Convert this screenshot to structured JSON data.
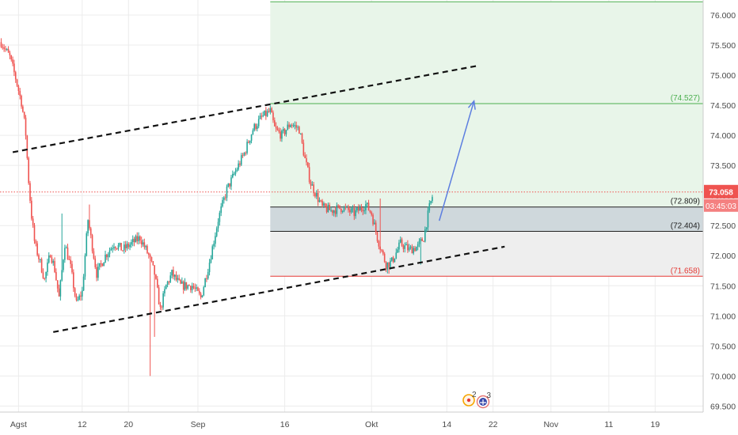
{
  "chart_data": {
    "type": "candlestick",
    "title": "",
    "y_ticks": [
      "76.000",
      "75.500",
      "75.000",
      "74.500",
      "74.000",
      "73.500",
      "73.000",
      "72.500",
      "72.000",
      "71.500",
      "71.000",
      "70.500",
      "70.000",
      "69.500"
    ],
    "y_range": [
      69.4,
      76.25
    ],
    "x_ticks": [
      {
        "label": "Agst",
        "day": 0
      },
      {
        "label": "12",
        "day": 11
      },
      {
        "label": "20",
        "day": 19
      },
      {
        "label": "Sep",
        "day": 31
      },
      {
        "label": "16",
        "day": 46
      },
      {
        "label": "Okt",
        "day": 61
      },
      {
        "label": "14",
        "day": 74
      },
      {
        "label": "22",
        "day": 82
      },
      {
        "label": "Nov",
        "day": 92
      },
      {
        "label": "11",
        "day": 102
      },
      {
        "label": "19",
        "day": 110
      }
    ],
    "x_range": [
      -3.2,
      118.3
    ],
    "last_price": {
      "label": "73.058",
      "value": 73.058,
      "countdown": "03:45:03"
    },
    "levels": [
      {
        "label": "(74.527)",
        "value": 74.527,
        "color": "#4caf50"
      },
      {
        "label": "(72.809)",
        "value": 72.809,
        "color": "#222222"
      },
      {
        "label": "(72.404)",
        "value": 72.404,
        "color": "#222222"
      },
      {
        "label": "(71.658)",
        "value": 71.658,
        "color": "#e53935"
      }
    ],
    "top_level": {
      "value": 76.22,
      "color": "#4caf50"
    },
    "zones": [
      {
        "name": "target-zone",
        "from_day": 43.5,
        "to_day": 118.3,
        "y1": 72.809,
        "y2": 76.22,
        "color": "#e8f5e9"
      },
      {
        "name": "entry-zone",
        "from_day": 43.5,
        "to_day": 118.3,
        "y1": 72.404,
        "y2": 72.809,
        "color": "#cfd8dc"
      },
      {
        "name": "stop-zone",
        "from_day": 43.5,
        "to_day": 118.3,
        "y1": 71.658,
        "y2": 72.404,
        "color": "#eeeeee"
      }
    ],
    "trendlines": [
      {
        "name": "upper-channel",
        "from": {
          "day": -1.0,
          "value": 73.72
        },
        "to": {
          "day": 79.5,
          "value": 75.16
        },
        "style": "dashed",
        "color": "#111111"
      },
      {
        "name": "lower-channel",
        "from": {
          "day": 6.0,
          "value": 70.73
        },
        "to": {
          "day": 84.0,
          "value": 72.15
        },
        "style": "dashed",
        "color": "#111111"
      }
    ],
    "projection_arrow": {
      "from": {
        "day": 72.7,
        "value": 72.58
      },
      "to": {
        "day": 78.7,
        "value": 74.57
      },
      "color": "#5c7ee0"
    },
    "anchors": [
      {
        "day": -3.0,
        "value": 75.55
      },
      {
        "day": -1.5,
        "value": 75.3
      },
      {
        "day": -0.5,
        "value": 74.95
      },
      {
        "day": 0.5,
        "value": 74.55
      },
      {
        "day": 1.2,
        "value": 74.1
      },
      {
        "day": 1.7,
        "value": 73.3
      },
      {
        "day": 2.2,
        "value": 72.7
      },
      {
        "day": 2.8,
        "value": 72.2
      },
      {
        "day": 3.7,
        "value": 71.9
      },
      {
        "day": 4.5,
        "value": 71.6
      },
      {
        "day": 5.5,
        "value": 72.05
      },
      {
        "day": 6.2,
        "value": 71.8
      },
      {
        "day": 7.0,
        "value": 71.3
      },
      {
        "day": 8.0,
        "value": 72.2
      },
      {
        "day": 9.0,
        "value": 71.8
      },
      {
        "day": 10.0,
        "value": 71.2
      },
      {
        "day": 11.0,
        "value": 71.4
      },
      {
        "day": 12.0,
        "value": 72.6
      },
      {
        "day": 13.5,
        "value": 71.7
      },
      {
        "day": 15.0,
        "value": 72.0
      },
      {
        "day": 16.5,
        "value": 72.2
      },
      {
        "day": 18.0,
        "value": 72.1
      },
      {
        "day": 19.5,
        "value": 72.2
      },
      {
        "day": 21.0,
        "value": 72.3
      },
      {
        "day": 22.5,
        "value": 72.0
      },
      {
        "day": 23.5,
        "value": 71.7
      },
      {
        "day": 24.5,
        "value": 71.1
      },
      {
        "day": 25.5,
        "value": 71.5
      },
      {
        "day": 26.5,
        "value": 71.7
      },
      {
        "day": 28.0,
        "value": 71.5
      },
      {
        "day": 30.0,
        "value": 71.5
      },
      {
        "day": 31.5,
        "value": 71.3
      },
      {
        "day": 33.0,
        "value": 71.9
      },
      {
        "day": 34.5,
        "value": 72.6
      },
      {
        "day": 36.0,
        "value": 73.1
      },
      {
        "day": 37.5,
        "value": 73.4
      },
      {
        "day": 39.0,
        "value": 73.7
      },
      {
        "day": 40.5,
        "value": 74.1
      },
      {
        "day": 42.0,
        "value": 74.3
      },
      {
        "day": 43.5,
        "value": 74.4
      },
      {
        "day": 44.3,
        "value": 74.1
      },
      {
        "day": 45.5,
        "value": 74.0
      },
      {
        "day": 47.0,
        "value": 74.2
      },
      {
        "day": 48.5,
        "value": 74.1
      },
      {
        "day": 49.5,
        "value": 73.6
      },
      {
        "day": 50.5,
        "value": 73.2
      },
      {
        "day": 51.5,
        "value": 73.0
      },
      {
        "day": 52.5,
        "value": 72.8
      },
      {
        "day": 54.0,
        "value": 72.75
      },
      {
        "day": 56.0,
        "value": 72.8
      },
      {
        "day": 58.0,
        "value": 72.7
      },
      {
        "day": 60.0,
        "value": 72.85
      },
      {
        "day": 61.0,
        "value": 72.7
      },
      {
        "day": 62.0,
        "value": 72.3
      },
      {
        "day": 63.5,
        "value": 71.85
      },
      {
        "day": 64.5,
        "value": 71.9
      },
      {
        "day": 66.0,
        "value": 72.2
      },
      {
        "day": 67.5,
        "value": 72.1
      },
      {
        "day": 69.0,
        "value": 72.15
      },
      {
        "day": 70.0,
        "value": 72.3
      },
      {
        "day": 71.0,
        "value": 72.8
      },
      {
        "day": 71.7,
        "value": 73.05
      }
    ],
    "spikes": [
      {
        "day": 22.8,
        "low": 70.0
      },
      {
        "day": 23.4,
        "low": 70.65
      },
      {
        "day": 12.2,
        "high": 72.85
      },
      {
        "day": 7.5,
        "high": 72.7
      },
      {
        "day": 62.5,
        "high": 72.95
      },
      {
        "day": 64.0,
        "low": 71.7
      },
      {
        "day": 69.5,
        "low": 71.85
      }
    ],
    "colors": {
      "up": "#26a69a",
      "down": "#ef5350",
      "grid": "#ececec",
      "axis": "#cccccc"
    },
    "events": [
      {
        "label": "2",
        "icon": "event-badge-icon"
      },
      {
        "label": "3",
        "icon": "flag-badge-icon"
      }
    ]
  }
}
